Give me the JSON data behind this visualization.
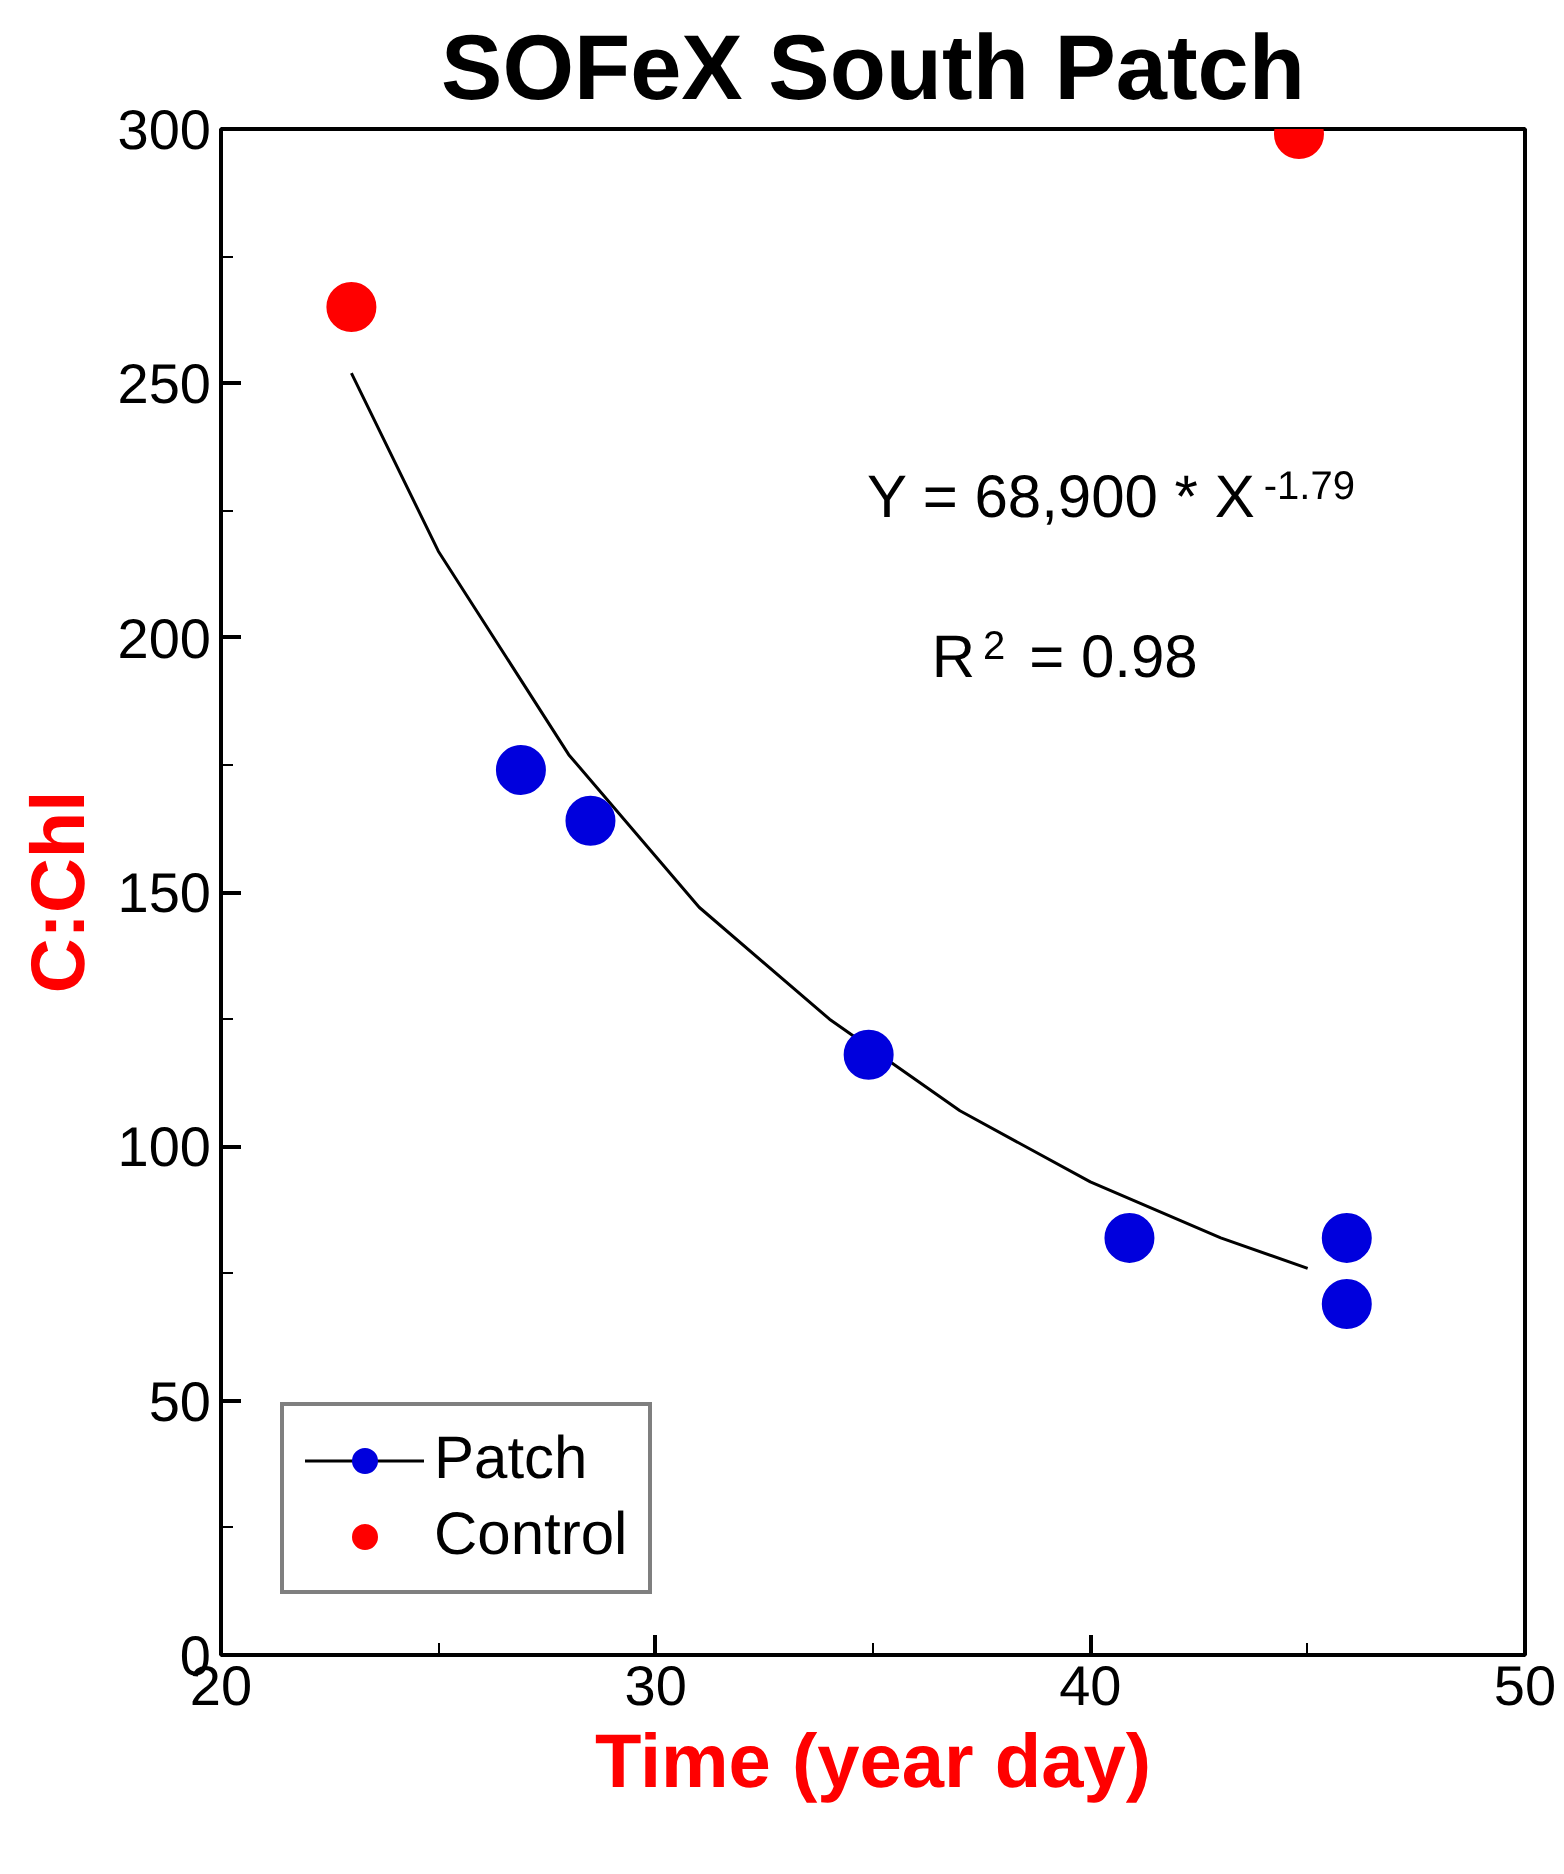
{
  "chart_data": {
    "type": "scatter",
    "title": "SOFeX South Patch",
    "xlabel": "Time (year day)",
    "ylabel": "C:Chl",
    "xlim": [
      20,
      50
    ],
    "xticks": [
      20,
      30,
      40,
      50
    ],
    "ylim": [
      0,
      300
    ],
    "yticks": [
      0,
      50,
      100,
      150,
      200,
      250,
      300
    ],
    "series": [
      {
        "type": "line",
        "marker": "none",
        "color": "#000000",
        "x": [
          23,
          25,
          28,
          31,
          34,
          37,
          40,
          43,
          45
        ],
        "values": [
          252,
          217,
          177,
          147,
          125,
          107,
          93,
          82,
          76
        ]
      },
      {
        "name": "Patch",
        "color": "#0000dd",
        "x": [
          26.9,
          28.5,
          34.9,
          40.9,
          45.9,
          45.9
        ],
        "values": [
          174,
          164,
          118,
          82,
          82,
          69
        ]
      },
      {
        "name": "Control",
        "color": "#ff0000",
        "x": [
          23.0,
          44.8
        ],
        "values": [
          265,
          299
        ]
      }
    ],
    "annotations": [
      "Y = 68,900 * X$^{-1.79}$",
      "R$^{2}$ = 0.98"
    ],
    "marker": "circle",
    "legend": "bottom left",
    "grid": false
  }
}
